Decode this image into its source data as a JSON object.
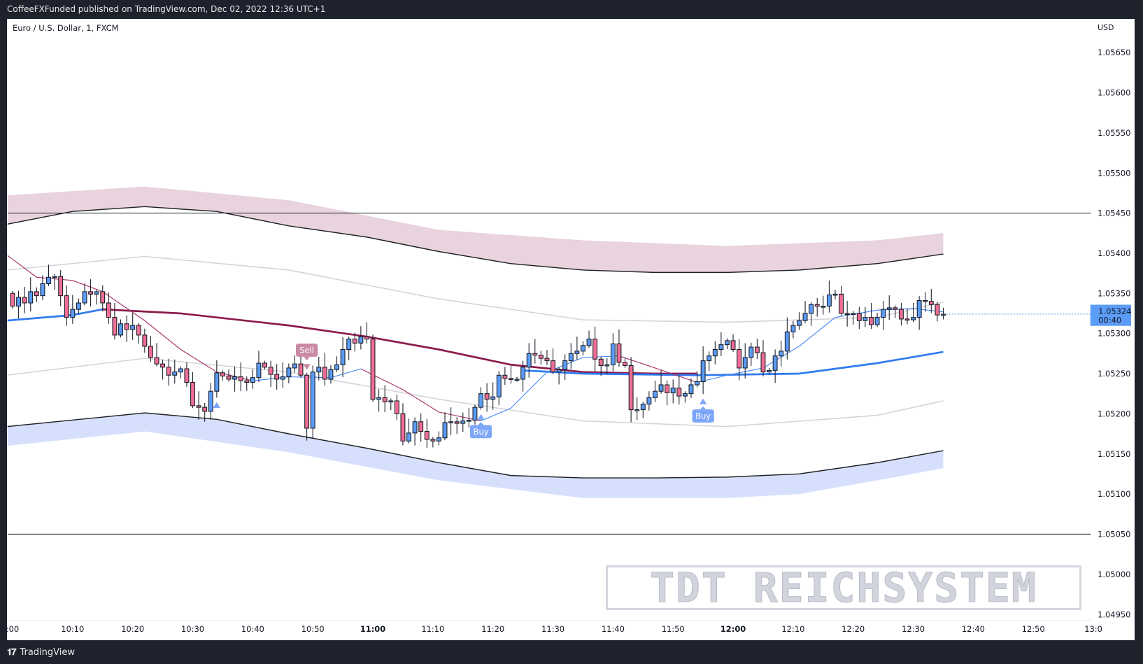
{
  "header": {
    "published_text": "CoffeeFXFunded published on TradingView.com, Dec 02, 2022 12:36 UTC+1"
  },
  "symbol": {
    "title": "Euro / U.S. Dollar, 1, FXCM",
    "currency": "USD"
  },
  "last_price": {
    "value": "1.05324",
    "countdown": "00:40",
    "color": "#5b9cf6"
  },
  "footer": {
    "brand": "TradingView",
    "logo": "tv-logo-icon"
  },
  "watermark": "TDT REICHSYSTEM",
  "colors": {
    "up": "#5b9cf6",
    "down": "#f06e96",
    "maroon": "#8b1a4a",
    "blue": "#2f7bf0",
    "pink_fill": "#e8d3df",
    "blue_fill": "#d6e0fd",
    "grey_band": "#d5d3da"
  },
  "chart_data": {
    "type": "candlestick",
    "title": "Euro / U.S. Dollar, 1, FXCM",
    "x_unit": "minutes after 10:00",
    "ylim": [
      1.0494,
      1.0567
    ],
    "yticks": [
      "1.05650",
      "1.05600",
      "1.05550",
      "1.05500",
      "1.05450",
      "1.05400",
      "1.05350",
      "1.05300",
      "1.05250",
      "1.05200",
      "1.05150",
      "1.05100",
      "1.05050",
      "1.05000",
      "1.04950"
    ],
    "xticks": [
      {
        "label": ":00",
        "minute": 0,
        "bold": false
      },
      {
        "label": "10:10",
        "minute": 10,
        "bold": false
      },
      {
        "label": "10:20",
        "minute": 20,
        "bold": false
      },
      {
        "label": "10:30",
        "minute": 30,
        "bold": false
      },
      {
        "label": "10:40",
        "minute": 40,
        "bold": false
      },
      {
        "label": "10:50",
        "minute": 50,
        "bold": false
      },
      {
        "label": "11:00",
        "minute": 60,
        "bold": true
      },
      {
        "label": "11:10",
        "minute": 70,
        "bold": false
      },
      {
        "label": "11:20",
        "minute": 80,
        "bold": false
      },
      {
        "label": "11:30",
        "minute": 90,
        "bold": false
      },
      {
        "label": "11:40",
        "minute": 100,
        "bold": false
      },
      {
        "label": "11:50",
        "minute": 110,
        "bold": false
      },
      {
        "label": "12:00",
        "minute": 120,
        "bold": true
      },
      {
        "label": "12:10",
        "minute": 130,
        "bold": false
      },
      {
        "label": "12:20",
        "minute": 140,
        "bold": false
      },
      {
        "label": "12:30",
        "minute": 150,
        "bold": false
      },
      {
        "label": "12:40",
        "minute": 160,
        "bold": false
      },
      {
        "label": "12:50",
        "minute": 170,
        "bold": false
      },
      {
        "label": "13:0",
        "minute": 180,
        "bold": false
      }
    ],
    "first_open": 1.0535,
    "closes": [
      1.05334,
      1.05345,
      1.05338,
      1.05352,
      1.05347,
      1.05362,
      1.0537,
      1.05371,
      1.05347,
      1.0532,
      1.0533,
      1.05338,
      1.05352,
      1.05349,
      1.05352,
      1.05338,
      1.0532,
      1.05298,
      1.05312,
      1.05305,
      1.0531,
      1.05298,
      1.05284,
      1.0527,
      1.05262,
      1.05258,
      1.05248,
      1.05252,
      1.05256,
      1.05239,
      1.0521,
      1.05208,
      1.05203,
      1.05228,
      1.05251,
      1.05247,
      1.05243,
      1.05246,
      1.05241,
      1.05239,
      1.05245,
      1.05263,
      1.05258,
      1.05249,
      1.05243,
      1.05246,
      1.05257,
      1.05262,
      1.05248,
      1.05182,
      1.05252,
      1.05258,
      1.05243,
      1.05255,
      1.05261,
      1.0528,
      1.05293,
      1.05288,
      1.05296,
      1.05293,
      1.05218,
      1.0522,
      1.05215,
      1.05216,
      1.052,
      1.05166,
      1.05176,
      1.0519,
      1.05178,
      1.05168,
      1.05166,
      1.0517,
      1.05189,
      1.0519,
      1.05188,
      1.05191,
      1.05192,
      1.05208,
      1.05225,
      1.05218,
      1.05221,
      1.05248,
      1.05244,
      1.05243,
      1.05243,
      1.05258,
      1.05275,
      1.05273,
      1.05269,
      1.05266,
      1.05252,
      1.05255,
      1.05266,
      1.05275,
      1.05278,
      1.05285,
      1.05293,
      1.05268,
      1.0526,
      1.05261,
      1.05287,
      1.05264,
      1.0526,
      1.05205,
      1.05205,
      1.05212,
      1.0522,
      1.05228,
      1.05236,
      1.05226,
      1.05232,
      1.05222,
      1.05225,
      1.05236,
      1.0524,
      1.05266,
      1.05272,
      1.0528,
      1.05286,
      1.05291,
      1.0528,
      1.05257,
      1.0527,
      1.05283,
      1.05276,
      1.05252,
      1.05254,
      1.05272,
      1.05278,
      1.05302,
      1.0531,
      1.05316,
      1.05325,
      1.05336,
      1.05334,
      1.05334,
      1.05348,
      1.05349,
      1.05325,
      1.05324,
      1.05325,
      1.05316,
      1.0532,
      1.05311,
      1.0532,
      1.0533,
      1.05332,
      1.0533,
      1.05318,
      1.05317,
      1.0532,
      1.05341,
      1.0534,
      1.05336,
      1.05323,
      1.05324
    ],
    "horizontal_lines": [
      1.0545,
      1.0505
    ],
    "bands": {
      "pink_top": [
        [
          -1,
          1.05472
        ],
        [
          22,
          1.05483
        ],
        [
          46,
          1.05466
        ],
        [
          71,
          1.05429
        ],
        [
          95,
          1.05416
        ],
        [
          119,
          1.05409
        ],
        [
          144,
          1.05416
        ],
        [
          155,
          1.05425
        ]
      ],
      "upper_black": [
        [
          -1,
          1.05436
        ],
        [
          10,
          1.05452
        ],
        [
          22,
          1.05458
        ],
        [
          34,
          1.05452
        ],
        [
          46,
          1.05434
        ],
        [
          59,
          1.0542
        ],
        [
          71,
          1.05402
        ],
        [
          83,
          1.05387
        ],
        [
          95,
          1.05379
        ],
        [
          107,
          1.05376
        ],
        [
          119,
          1.05376
        ],
        [
          131,
          1.05379
        ],
        [
          144,
          1.05387
        ],
        [
          155,
          1.05399
        ]
      ],
      "upper_grey": [
        [
          -1,
          1.05379
        ],
        [
          22,
          1.05396
        ],
        [
          46,
          1.05379
        ],
        [
          71,
          1.05343
        ],
        [
          95,
          1.05317
        ],
        [
          119,
          1.05314
        ],
        [
          144,
          1.0532
        ],
        [
          155,
          1.05339
        ]
      ],
      "lower_grey": [
        [
          -1,
          1.05248
        ],
        [
          22,
          1.05269
        ],
        [
          46,
          1.05252
        ],
        [
          71,
          1.05218
        ],
        [
          95,
          1.05191
        ],
        [
          119,
          1.05184
        ],
        [
          144,
          1.05198
        ],
        [
          155,
          1.05216
        ]
      ],
      "lower_black": [
        [
          -1,
          1.05184
        ],
        [
          22,
          1.05201
        ],
        [
          34,
          1.05193
        ],
        [
          46,
          1.05175
        ],
        [
          59,
          1.05157
        ],
        [
          71,
          1.05139
        ],
        [
          83,
          1.05123
        ],
        [
          95,
          1.0512
        ],
        [
          107,
          1.0512
        ],
        [
          119,
          1.05121
        ],
        [
          131,
          1.05125
        ],
        [
          144,
          1.05139
        ],
        [
          155,
          1.05154
        ]
      ],
      "blue_bottom": [
        [
          -1,
          1.0516
        ],
        [
          22,
          1.05178
        ],
        [
          46,
          1.05152
        ],
        [
          71,
          1.05117
        ],
        [
          95,
          1.05095
        ],
        [
          119,
          1.05095
        ],
        [
          131,
          1.051
        ],
        [
          144,
          1.05117
        ],
        [
          155,
          1.05132
        ]
      ]
    },
    "slow_ma": [
      {
        "color": "blue",
        "points": [
          [
            -1,
            1.05316
          ],
          [
            10,
            1.05323
          ],
          [
            15,
            1.0533
          ]
        ]
      },
      {
        "color": "maroon",
        "points": [
          [
            15,
            1.0533
          ],
          [
            28,
            1.05325
          ],
          [
            46,
            1.0531
          ],
          [
            59,
            1.05296
          ],
          [
            71,
            1.0528
          ],
          [
            83,
            1.05261
          ],
          [
            95,
            1.05252
          ],
          [
            107,
            1.0525
          ],
          [
            114,
            1.0525
          ]
        ]
      },
      {
        "color": "blue",
        "points": [
          [
            85,
            1.05254
          ],
          [
            95,
            1.0525
          ],
          [
            114,
            1.05248
          ],
          [
            131,
            1.0525
          ],
          [
            144,
            1.05263
          ],
          [
            155,
            1.05277
          ]
        ]
      }
    ],
    "fast_ma": [
      {
        "color": "maroon",
        "points": [
          [
            -1,
            1.05398
          ],
          [
            4,
            1.0537
          ],
          [
            10,
            1.05366
          ],
          [
            15,
            1.05352
          ],
          [
            22,
            1.05316
          ],
          [
            28,
            1.0528
          ],
          [
            34,
            1.05252
          ],
          [
            40,
            1.05241
          ]
        ]
      },
      {
        "color": "blue",
        "points": [
          [
            40,
            1.05241
          ],
          [
            46,
            1.05246
          ],
          [
            53,
            1.05245
          ],
          [
            58,
            1.05256
          ]
        ]
      },
      {
        "color": "maroon",
        "points": [
          [
            58,
            1.05256
          ],
          [
            65,
            1.0523
          ],
          [
            71,
            1.05202
          ],
          [
            78,
            1.05191
          ]
        ]
      },
      {
        "color": "blue",
        "points": [
          [
            78,
            1.05191
          ],
          [
            83,
            1.05207
          ],
          [
            89,
            1.05252
          ],
          [
            95,
            1.0527
          ],
          [
            101,
            1.05272
          ]
        ]
      },
      {
        "color": "maroon",
        "points": [
          [
            101,
            1.05272
          ],
          [
            107,
            1.05257
          ],
          [
            114,
            1.05239
          ]
        ]
      },
      {
        "color": "blue",
        "points": [
          [
            114,
            1.05239
          ],
          [
            119,
            1.05248
          ],
          [
            125,
            1.05257
          ],
          [
            131,
            1.05284
          ],
          [
            137,
            1.0532
          ],
          [
            144,
            1.05329
          ],
          [
            150,
            1.05331
          ],
          [
            155,
            1.05327
          ]
        ]
      }
    ],
    "signals": [
      {
        "type": "buy",
        "minute": 34,
        "label": ""
      },
      {
        "type": "sell",
        "minute": 49,
        "label": "Sell"
      },
      {
        "type": "buy",
        "minute": 78,
        "label": "Buy"
      },
      {
        "type": "buy",
        "minute": 115,
        "label": "Buy"
      }
    ]
  }
}
